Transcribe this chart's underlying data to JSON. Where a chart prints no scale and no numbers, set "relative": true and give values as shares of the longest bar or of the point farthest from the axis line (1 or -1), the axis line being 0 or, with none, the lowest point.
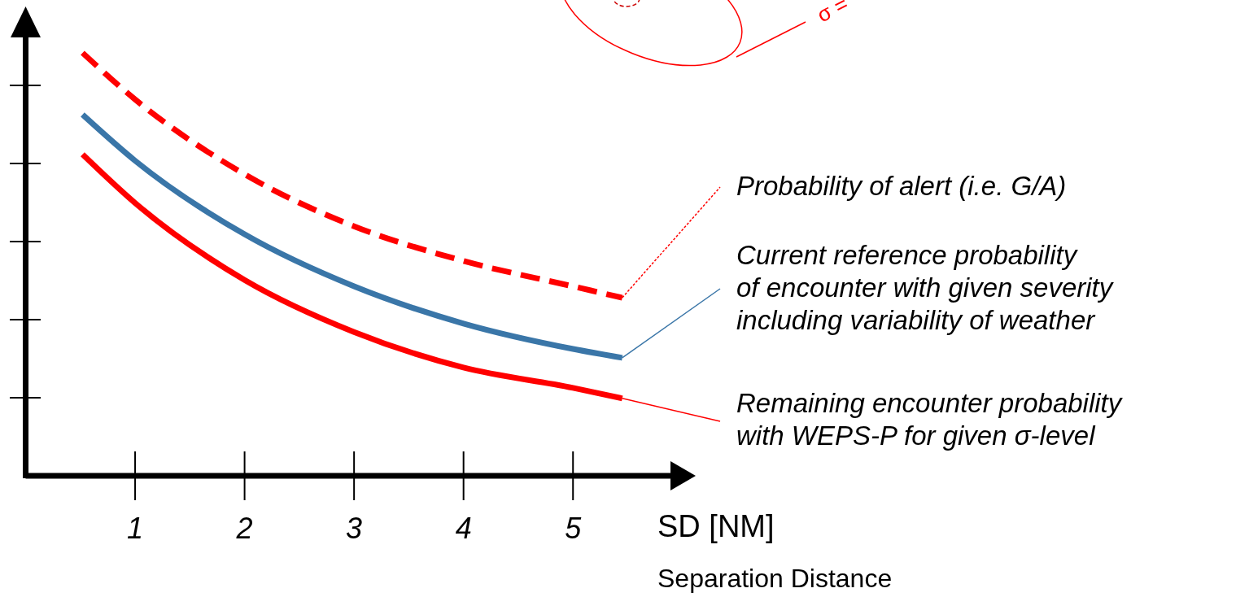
{
  "chart_data": {
    "type": "line",
    "relative": true,
    "xlabel": "SD [NM]",
    "annotations": [
      "Separation Distance",
      "σ ="
    ],
    "xlim": [
      0,
      5.92
    ],
    "xticks": [
      1,
      2,
      3,
      4,
      5
    ],
    "legend": "right",
    "marker": "none",
    "series": [
      {
        "name": "Probability of alert (i.e. G/A)",
        "color": "#ff0000",
        "line_style": "dashed",
        "x": [
          0.52,
          1,
          2,
          3,
          4,
          5,
          5.45
        ],
        "values": [
          1.0,
          0.89,
          0.713,
          0.59,
          0.508,
          0.448,
          0.421
        ]
      },
      {
        "name": "Current reference probability\nof encounter with given severity\nincluding variability of weather",
        "color": "#3a76a8",
        "line_style": "solid",
        "x": [
          0.52,
          1,
          2,
          3,
          4,
          5,
          5.45
        ],
        "values": [
          0.854,
          0.745,
          0.571,
          0.448,
          0.36,
          0.3,
          0.279
        ]
      },
      {
        "name": "Remaining encounter probability\nwith WEPS-P for given σ-level",
        "color": "#ff0000",
        "line_style": "solid",
        "x": [
          0.52,
          1,
          2,
          3,
          4,
          5,
          5.45
        ],
        "values": [
          0.76,
          0.645,
          0.463,
          0.34,
          0.256,
          0.208,
          0.183
        ]
      }
    ]
  }
}
